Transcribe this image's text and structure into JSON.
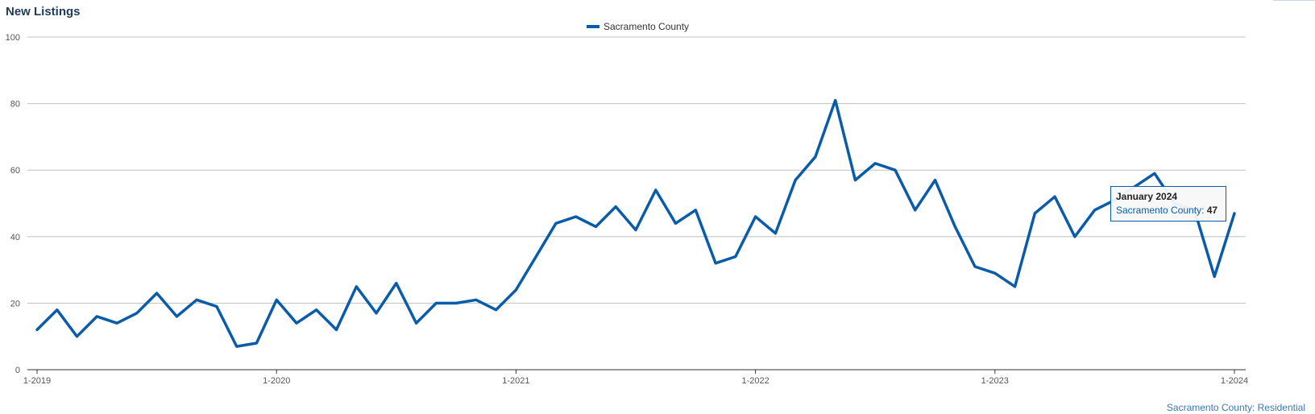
{
  "chart_title": "New Listings",
  "credit": "Sacramento County: Residential",
  "colors": {
    "series": "#0a5ca8",
    "grid": "#c0c0c0",
    "axis": "#333333"
  },
  "chart_data": {
    "type": "line",
    "title": "New Listings",
    "xlabel": "",
    "ylabel": "",
    "ylim": [
      0,
      100
    ],
    "yticks": [
      0,
      20,
      40,
      60,
      80,
      100
    ],
    "xticks": [
      "1-2019",
      "1-2020",
      "1-2021",
      "1-2022",
      "1-2023",
      "1-2024"
    ],
    "grid": true,
    "legend_position": "top-center",
    "x_start": "2019-01",
    "x_interval": "monthly",
    "series": [
      {
        "name": "Sacramento County",
        "color": "#0a5ca8",
        "values": [
          12,
          18,
          10,
          16,
          14,
          17,
          23,
          16,
          21,
          19,
          7,
          8,
          21,
          14,
          18,
          12,
          25,
          17,
          26,
          14,
          20,
          20,
          21,
          18,
          24,
          34,
          44,
          46,
          43,
          49,
          42,
          54,
          44,
          48,
          32,
          34,
          46,
          41,
          57,
          64,
          81,
          57,
          62,
          60,
          48,
          57,
          43,
          31,
          29,
          25,
          47,
          52,
          40,
          48,
          51,
          55,
          59,
          50,
          48,
          28,
          47
        ]
      }
    ],
    "tooltip": {
      "title": "January 2024",
      "series": "Sacramento County",
      "value": "47"
    }
  }
}
